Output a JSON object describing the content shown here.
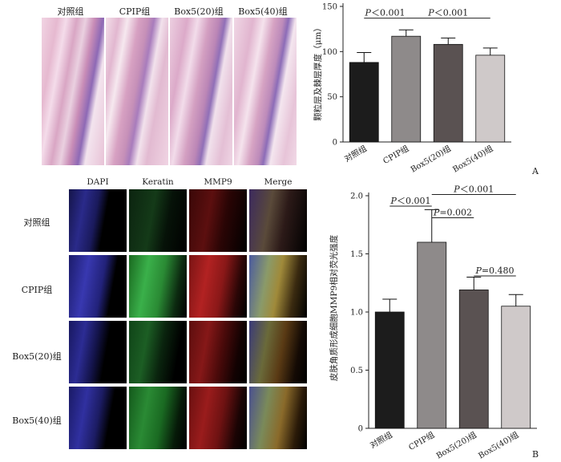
{
  "he_panels": {
    "labels": [
      "对照组",
      "CPIP组",
      "Box5(20)组",
      "Box5(40)组"
    ]
  },
  "fluorescence_panels": {
    "columns": [
      "DAPI",
      "Keratin",
      "MMP9",
      "Merge"
    ],
    "rows": [
      "对照组",
      "CPIP组",
      "Box5(20)组",
      "Box5(40)组"
    ]
  },
  "panel_letters": {
    "a": "A",
    "b": "B"
  },
  "chart_data": [
    {
      "type": "bar",
      "panel": "A",
      "categories": [
        "对照组",
        "CPIP组",
        "Box5(20)组",
        "Box5(40)组"
      ],
      "values": [
        88,
        117,
        108,
        96
      ],
      "errors": [
        11,
        7,
        7,
        8
      ],
      "ylabel": "颗粒层及棘层厚度（μm）",
      "ylim": [
        0,
        150
      ],
      "yticks": [
        0,
        50,
        100,
        150
      ],
      "bar_colors": [
        "#1c1c1c",
        "#8e8a8a",
        "#5a5252",
        "#cfc9c9"
      ],
      "annotations": [
        {
          "text": "P＜0.001",
          "from": 0,
          "to": 1,
          "level": 137
        },
        {
          "text": "P＜0.001",
          "from": 1,
          "to": 3,
          "level": 137
        }
      ]
    },
    {
      "type": "bar",
      "panel": "B",
      "categories": [
        "对照组",
        "CPIP组",
        "Box5(20)组",
        "Box5(40)组"
      ],
      "values": [
        1.0,
        1.6,
        1.19,
        1.05
      ],
      "errors": [
        0.11,
        0.28,
        0.11,
        0.1
      ],
      "ylabel": "皮肤角质形成细胞MMP9相对荧光强度",
      "ylim": [
        0,
        2.0
      ],
      "yticks": [
        "0",
        "0.5",
        "1.0",
        "1.5",
        "2.0"
      ],
      "bar_colors": [
        "#1c1c1c",
        "#8e8a8a",
        "#5a5252",
        "#cfc9c9"
      ],
      "annotations": [
        {
          "text": "P＜0.001",
          "from": 0,
          "to": 1,
          "level": 1.91
        },
        {
          "text": "P＜0.001",
          "from": 1,
          "to": 3,
          "level": 2.01
        },
        {
          "text": "P=0.002",
          "from": 1,
          "to": 2,
          "level": 1.81
        },
        {
          "text": "P=0.480",
          "from": 2,
          "to": 3,
          "level": 1.31
        }
      ]
    }
  ]
}
